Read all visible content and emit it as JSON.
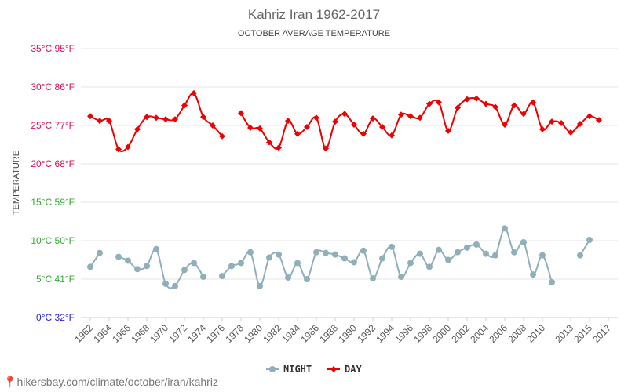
{
  "chart_data": {
    "type": "line",
    "title": "Kahriz Iran 1962-2017",
    "subtitle": "OCTOBER AVERAGE TEMPERATURE",
    "ylabel": "TEMPERATURE",
    "ylim": [
      0,
      35
    ],
    "yticks": [
      {
        "value": 0,
        "label": "0°C 32°F",
        "color": "#2222dd"
      },
      {
        "value": 5,
        "label": "5°C 41°F",
        "color": "#33aa33"
      },
      {
        "value": 10,
        "label": "10°C 50°F",
        "color": "#33aa33"
      },
      {
        "value": 15,
        "label": "15°C 59°F",
        "color": "#33aa33"
      },
      {
        "value": 20,
        "label": "20°C 68°F",
        "color": "#dd1155"
      },
      {
        "value": 25,
        "label": "25°C 77°F",
        "color": "#dd1155"
      },
      {
        "value": 30,
        "label": "30°C 86°F",
        "color": "#dd1155"
      },
      {
        "value": 35,
        "label": "35°C 95°F",
        "color": "#dd1155"
      }
    ],
    "xticks": [
      "1962",
      "1964",
      "1966",
      "1968",
      "1970",
      "1972",
      "1974",
      "1976",
      "1978",
      "1980",
      "1982",
      "1984",
      "1986",
      "1988",
      "1990",
      "1992",
      "1994",
      "1996",
      "1998",
      "2000",
      "2002",
      "2004",
      "2006",
      "2008",
      "2010",
      "2013",
      "2015",
      "2017"
    ],
    "x": [
      1962,
      1963,
      1964,
      1965,
      1966,
      1967,
      1968,
      1969,
      1970,
      1971,
      1972,
      1973,
      1974,
      1975,
      1976,
      1977,
      1978,
      1979,
      1980,
      1981,
      1982,
      1983,
      1984,
      1985,
      1986,
      1987,
      1988,
      1989,
      1990,
      1991,
      1992,
      1993,
      1994,
      1995,
      1996,
      1997,
      1998,
      1999,
      2000,
      2001,
      2002,
      2003,
      2004,
      2005,
      2006,
      2007,
      2008,
      2009,
      2010,
      2011,
      2012,
      2013,
      2014,
      2015,
      2016,
      2017
    ],
    "grid": true,
    "legend_position": "bottom",
    "series": [
      {
        "name": "NIGHT",
        "color": "#8fb0bb",
        "marker": "circle",
        "values": [
          6.6,
          8.4,
          null,
          7.9,
          7.4,
          6.3,
          6.7,
          8.9,
          4.4,
          4.1,
          6.2,
          7.1,
          5.3,
          null,
          5.4,
          6.7,
          7.1,
          8.5,
          4.1,
          7.8,
          8.2,
          5.2,
          7.1,
          5.0,
          8.5,
          8.4,
          8.2,
          7.7,
          7.2,
          8.7,
          5.1,
          7.7,
          9.2,
          5.3,
          7.1,
          8.3,
          6.6,
          8.8,
          7.5,
          8.5,
          9.1,
          9.5,
          8.3,
          8.1,
          11.6,
          8.5,
          9.8,
          5.6,
          8.1,
          4.6,
          null,
          null,
          8.1,
          10.1,
          null,
          null
        ]
      },
      {
        "name": "DAY",
        "color": "#ee0000",
        "marker": "diamond",
        "values": [
          26.2,
          25.6,
          25.6,
          21.9,
          22.2,
          24.5,
          26.1,
          26.0,
          25.8,
          25.8,
          27.6,
          29.2,
          26.1,
          25.0,
          23.6,
          null,
          26.6,
          24.7,
          24.6,
          22.8,
          22.1,
          25.6,
          23.9,
          24.8,
          26.0,
          22.0,
          25.5,
          26.5,
          25.1,
          23.9,
          25.9,
          24.8,
          23.7,
          26.4,
          26.2,
          26.0,
          27.8,
          28.0,
          24.3,
          27.3,
          28.4,
          28.5,
          27.8,
          27.4,
          25.1,
          27.6,
          26.5,
          28.0,
          24.5,
          25.5,
          25.3,
          24.1,
          25.2,
          26.2,
          25.7,
          null
        ]
      }
    ]
  },
  "source": {
    "text": "hikersbay.com/climate/october/iran/kahriz"
  }
}
